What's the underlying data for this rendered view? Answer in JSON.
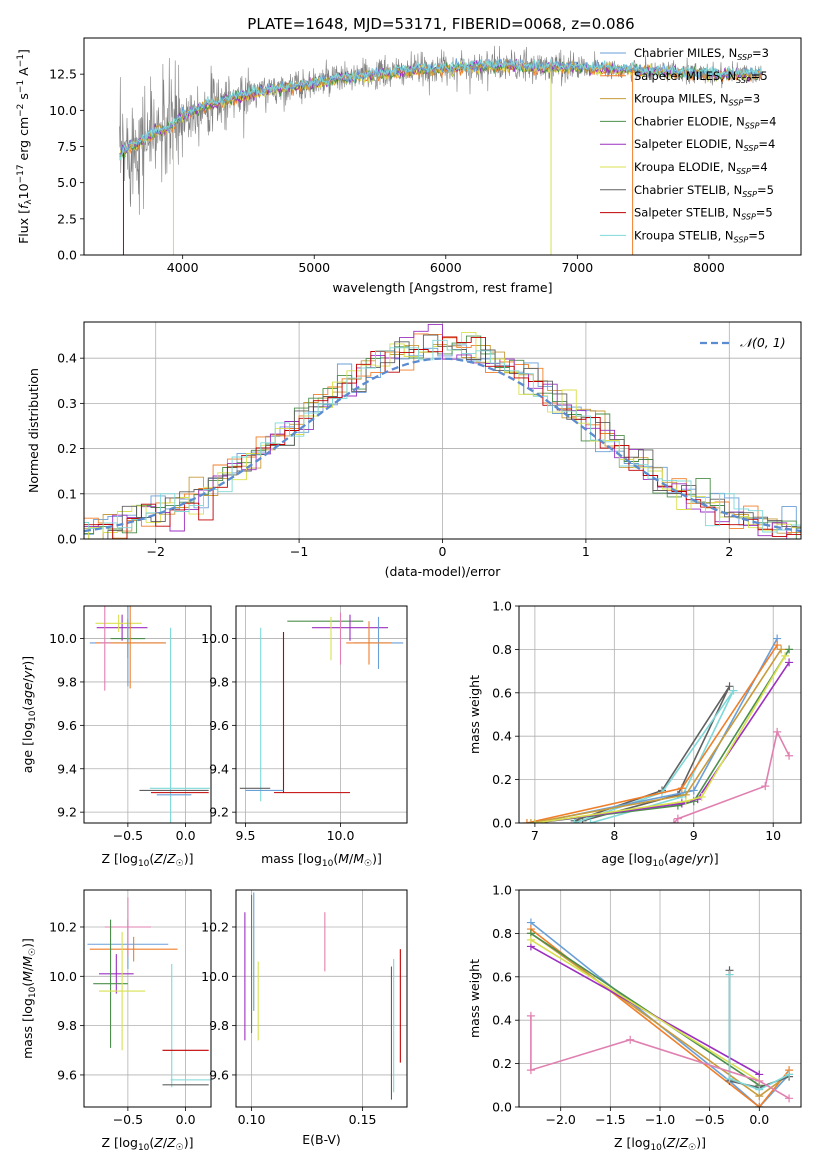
{
  "figure_title": "PLATE=1648, MJD=53171, FIBERID=0068, z=0.086",
  "colors": {
    "chabrier_miles": "#6a9fd8",
    "salpeter_miles": "#f07f2a",
    "kroupa_miles": "#c89b3c",
    "chabrier_elodie": "#4c8f4c",
    "salpeter_elodie": "#9b30c0",
    "kroupa_elodie": "#d8e050",
    "chabrier_stelib": "#606060",
    "salpeter_stelib": "#c00000",
    "kroupa_stelib": "#7fd8d8",
    "data": "#808080",
    "extra_pink": "#e080b0",
    "grid": "#b0b0b0",
    "normal_curve": "#5b8bd0"
  },
  "chart_data": [
    {
      "id": "spectrum",
      "type": "line",
      "title": "PLATE=1648, MJD=53171, FIBERID=0068, z=0.086",
      "xlabel": "wavelength [Angstrom, rest frame]",
      "ylabel": "Flux [f_λ 10^-17 erg cm^-2 s^-1 A^-1]",
      "xlim": [
        3250,
        8700
      ],
      "ylim": [
        0,
        15
      ],
      "xticks": [
        4000,
        5000,
        6000,
        7000,
        8000
      ],
      "yticks": [
        0.0,
        2.5,
        5.0,
        7.5,
        10.0,
        12.5
      ],
      "ytick_labels": [
        "0.0",
        "2.5",
        "5.0",
        "7.5",
        "10.0",
        "12.5"
      ],
      "legend_position": "right",
      "legend": [
        {
          "label": "Chabrier MILES, N",
          "sub": "SSP",
          "tail": "=3",
          "color_key": "chabrier_miles"
        },
        {
          "label": "Salpeter MILES, N",
          "sub": "SSP",
          "tail": "=5",
          "color_key": "salpeter_miles"
        },
        {
          "label": "Kroupa MILES, N",
          "sub": "SSP",
          "tail": "=3",
          "color_key": "kroupa_miles"
        },
        {
          "label": "Chabrier ELODIE, N",
          "sub": "SSP",
          "tail": "=4",
          "color_key": "chabrier_elodie"
        },
        {
          "label": "Salpeter ELODIE, N",
          "sub": "SSP",
          "tail": "=4",
          "color_key": "salpeter_elodie"
        },
        {
          "label": "Kroupa ELODIE, N",
          "sub": "SSP",
          "tail": "=4",
          "color_key": "kroupa_elodie"
        },
        {
          "label": "Chabrier STELIB, N",
          "sub": "SSP",
          "tail": "=5",
          "color_key": "chabrier_stelib"
        },
        {
          "label": "Salpeter STELIB, N",
          "sub": "SSP",
          "tail": "=5",
          "color_key": "salpeter_stelib"
        },
        {
          "label": "Kroupa STELIB, N",
          "sub": "SSP",
          "tail": "=5",
          "color_key": "kroupa_stelib"
        }
      ],
      "model_x": [
        3520,
        3600,
        3700,
        3800,
        3900,
        4000,
        4100,
        4200,
        4300,
        4400,
        4500,
        4600,
        4700,
        4800,
        4900,
        5000,
        5200,
        5400,
        5600,
        5800,
        6000,
        6200,
        6400,
        6600,
        6800,
        7000,
        7200,
        7400,
        7600,
        7800,
        8000,
        8200,
        8400
      ],
      "model_y": [
        6.8,
        7.5,
        8.0,
        8.5,
        8.8,
        9.6,
        10.1,
        10.4,
        10.6,
        10.9,
        11.1,
        11.3,
        11.5,
        11.6,
        11.7,
        11.9,
        12.2,
        12.4,
        12.6,
        12.8,
        12.9,
        13.0,
        13.1,
        13.0,
        13.0,
        13.0,
        12.9,
        12.8,
        12.7,
        12.6,
        12.5,
        12.5,
        12.5
      ],
      "cutoff_lines": [
        {
          "x": 3550,
          "color_key": "salpeter_stelib"
        },
        {
          "x": 3930,
          "color_key": "kroupa_elodie"
        },
        {
          "x": 6800,
          "color_key": "kroupa_elodie"
        },
        {
          "x": 7420,
          "color_key": "salpeter_miles"
        }
      ]
    },
    {
      "id": "residuals",
      "type": "area",
      "xlabel": "(data-model)/error",
      "ylabel": "Normed distribution",
      "xlim": [
        -2.5,
        2.5
      ],
      "ylim": [
        0,
        0.48
      ],
      "xticks": [
        -2,
        -1,
        0,
        1,
        2
      ],
      "xtick_labels": [
        "−2",
        "−1",
        "0",
        "1",
        "2"
      ],
      "yticks": [
        0.0,
        0.1,
        0.2,
        0.3,
        0.4
      ],
      "ytick_labels": [
        "0.0",
        "0.1",
        "0.2",
        "0.3",
        "0.4"
      ],
      "legend_position": "top-right",
      "legend": [
        {
          "label": "𝒩(0, 1)",
          "color_key": "normal_curve"
        }
      ],
      "bin_width": 0.1
    },
    {
      "id": "age_vs_Z",
      "type": "scatter",
      "xlabel": "Z [log10(Z/Z☉)]",
      "ylabel": "age [log10(age/yr)]",
      "xlim": [
        -0.88,
        0.22
      ],
      "ylim": [
        9.15,
        10.15
      ],
      "xticks": [
        -0.5,
        0.0
      ],
      "xtick_labels": [
        "−0.5",
        "0.0"
      ],
      "yticks": [
        9.2,
        9.4,
        9.6,
        9.8,
        10.0
      ],
      "ytick_labels": [
        "9.2",
        "9.4",
        "9.6",
        "9.8",
        "10.0"
      ],
      "points": [
        {
          "x": -0.5,
          "y": 10.0,
          "xerr": 0.15,
          "yerr": 0.09,
          "color_key": "chabrier_elodie"
        },
        {
          "x": -0.55,
          "y": 10.05,
          "xerr": 0.22,
          "yerr": 0.06,
          "color_key": "salpeter_elodie"
        },
        {
          "x": -0.58,
          "y": 10.07,
          "xerr": 0.2,
          "yerr": 0.04,
          "color_key": "kroupa_elodie"
        },
        {
          "x": -0.5,
          "y": 9.98,
          "xerr": 0.33,
          "yerr": 0.2,
          "color_key": "chabrier_miles"
        },
        {
          "x": -0.48,
          "y": 9.98,
          "xerr": 0.3,
          "yerr": 0.21,
          "color_key": "salpeter_miles"
        },
        {
          "x": -0.7,
          "y": 9.98,
          "xerr": 0.05,
          "yerr": 0.22,
          "color_key": "extra_pink"
        },
        {
          "x": -0.13,
          "y": 9.5,
          "xerr": 0.0,
          "yerr": 0.55,
          "color_key": "kroupa_stelib"
        },
        {
          "x": -0.1,
          "y": 9.3,
          "xerr": 0.3,
          "yerr": 0.0,
          "color_key": "chabrier_stelib"
        },
        {
          "x": -0.05,
          "y": 9.29,
          "xerr": 0.25,
          "yerr": 0.0,
          "color_key": "salpeter_stelib"
        },
        {
          "x": -0.05,
          "y": 9.31,
          "xerr": 0.26,
          "yerr": 0.0,
          "color_key": "kroupa_stelib"
        },
        {
          "x": -0.1,
          "y": 9.28,
          "xerr": 0.15,
          "yerr": 0.0,
          "color_key": "chabrier_miles"
        }
      ]
    },
    {
      "id": "age_vs_mass",
      "type": "scatter",
      "xlabel": "mass [log10(M/M☉)]",
      "ylabel": "",
      "xlim": [
        9.45,
        10.35
      ],
      "ylim": [
        9.15,
        10.15
      ],
      "xticks": [
        9.5,
        10.0
      ],
      "xtick_labels": [
        "9.5",
        "10.0"
      ],
      "yticks": [
        9.2,
        9.4,
        9.6,
        9.8,
        10.0
      ],
      "ytick_labels": [
        "9.2",
        "9.4",
        "9.6",
        "9.8",
        "10.0"
      ],
      "points": [
        {
          "x": 9.92,
          "y": 10.08,
          "xerr": 0.2,
          "yerr": 0.0,
          "color_key": "chabrier_elodie"
        },
        {
          "x": 10.05,
          "y": 10.05,
          "xerr": 0.2,
          "yerr": 0.06,
          "color_key": "salpeter_elodie"
        },
        {
          "x": 9.95,
          "y": 10.0,
          "xerr": 0.0,
          "yerr": 0.1,
          "color_key": "kroupa_elodie"
        },
        {
          "x": 10.2,
          "y": 9.98,
          "xerr": 0.13,
          "yerr": 0.12,
          "color_key": "chabrier_miles"
        },
        {
          "x": 10.15,
          "y": 9.98,
          "xerr": 0.12,
          "yerr": 0.1,
          "color_key": "salpeter_miles"
        },
        {
          "x": 10.0,
          "y": 10.0,
          "xerr": 0.0,
          "yerr": 0.12,
          "color_key": "extra_pink"
        },
        {
          "x": 9.58,
          "y": 9.65,
          "xerr": 0.0,
          "yerr": 0.4,
          "color_key": "kroupa_stelib"
        },
        {
          "x": 9.55,
          "y": 9.31,
          "xerr": 0.08,
          "yerr": 0.0,
          "color_key": "chabrier_stelib"
        },
        {
          "x": 9.7,
          "y": 9.66,
          "xerr": 0.0,
          "yerr": 0.37,
          "color_key": "salpeter_stelib"
        },
        {
          "x": 9.85,
          "y": 9.29,
          "xerr": 0.2,
          "yerr": 0.0,
          "color_key": "salpeter_stelib"
        },
        {
          "x": 9.6,
          "y": 9.3,
          "xerr": 0.1,
          "yerr": 0.0,
          "color_key": "chabrier_miles"
        }
      ]
    },
    {
      "id": "weight_vs_age",
      "type": "line",
      "xlabel": "age [log10(age/yr)]",
      "ylabel": "mass weight",
      "xlim": [
        6.8,
        10.35
      ],
      "ylim": [
        0,
        1.0
      ],
      "xticks": [
        7,
        8,
        9,
        10
      ],
      "xtick_labels": [
        "7",
        "8",
        "9",
        "10"
      ],
      "yticks": [
        0.0,
        0.2,
        0.4,
        0.6,
        0.8,
        1.0
      ],
      "ytick_labels": [
        "0.0",
        "0.2",
        "0.4",
        "0.6",
        "0.8",
        "1.0"
      ],
      "series": [
        {
          "color_key": "chabrier_stelib",
          "x": [
            7.5,
            8.6,
            9.45,
            8.8,
            7.6
          ],
          "y": [
            0.01,
            0.15,
            0.63,
            0.13,
            0.01
          ]
        },
        {
          "color_key": "kroupa_stelib",
          "x": [
            7.5,
            8.6,
            9.5,
            8.85,
            7.7
          ],
          "y": [
            0.0,
            0.14,
            0.61,
            0.12,
            0.0
          ]
        },
        {
          "color_key": "chabrier_miles",
          "x": [
            7.0,
            9.0,
            10.05
          ],
          "y": [
            0.0,
            0.15,
            0.85
          ]
        },
        {
          "color_key": "salpeter_miles",
          "x": [
            6.9,
            8.85,
            10.05
          ],
          "y": [
            0.0,
            0.16,
            0.82
          ]
        },
        {
          "color_key": "kroupa_miles",
          "x": [
            6.95,
            8.9,
            10.1
          ],
          "y": [
            0.0,
            0.13,
            0.8
          ]
        },
        {
          "color_key": "chabrier_elodie",
          "x": [
            7.0,
            8.8,
            9.0,
            10.2
          ],
          "y": [
            0.0,
            0.08,
            0.1,
            0.8
          ]
        },
        {
          "color_key": "salpeter_elodie",
          "x": [
            7.0,
            8.85,
            9.05,
            10.2
          ],
          "y": [
            0.0,
            0.09,
            0.11,
            0.74
          ]
        },
        {
          "color_key": "kroupa_elodie",
          "x": [
            7.0,
            8.9,
            9.1,
            10.15
          ],
          "y": [
            0.0,
            0.1,
            0.12,
            0.77
          ]
        },
        {
          "color_key": "extra_pink",
          "x": [
            8.75,
            8.8,
            9.9,
            10.05,
            10.2
          ],
          "y": [
            0.0,
            0.02,
            0.17,
            0.42,
            0.31
          ]
        }
      ]
    },
    {
      "id": "mass_vs_Z",
      "type": "scatter",
      "xlabel": "Z [log10(Z/Z☉)]",
      "ylabel": "mass [log10(M/M☉)]",
      "xlim": [
        -0.88,
        0.22
      ],
      "ylim": [
        9.47,
        10.35
      ],
      "xticks": [
        -0.5,
        0.0
      ],
      "xtick_labels": [
        "−0.5",
        "0.0"
      ],
      "yticks": [
        9.6,
        9.8,
        10.0,
        10.2
      ],
      "ytick_labels": [
        "9.6",
        "9.8",
        "10.0",
        "10.2"
      ],
      "points": [
        {
          "x": -0.5,
          "y": 10.13,
          "xerr": 0.35,
          "yerr": 0.1,
          "color_key": "chabrier_miles"
        },
        {
          "x": -0.5,
          "y": 10.2,
          "xerr": 0.2,
          "yerr": 0.12,
          "color_key": "extra_pink"
        },
        {
          "x": -0.45,
          "y": 10.11,
          "xerr": 0.38,
          "yerr": 0.05,
          "color_key": "salpeter_miles"
        },
        {
          "x": -0.6,
          "y": 10.01,
          "xerr": 0.15,
          "yerr": 0.08,
          "color_key": "salpeter_elodie"
        },
        {
          "x": -0.65,
          "y": 9.97,
          "xerr": 0.15,
          "yerr": 0.26,
          "color_key": "chabrier_elodie"
        },
        {
          "x": -0.55,
          "y": 9.94,
          "xerr": 0.2,
          "yerr": 0.24,
          "color_key": "kroupa_elodie"
        },
        {
          "x": -0.12,
          "y": 9.8,
          "xerr": 0.0,
          "yerr": 0.25,
          "color_key": "kroupa_stelib"
        },
        {
          "x": 0.0,
          "y": 9.7,
          "xerr": 0.2,
          "yerr": 0.0,
          "color_key": "salpeter_stelib"
        },
        {
          "x": 0.05,
          "y": 9.58,
          "xerr": 0.18,
          "yerr": 0.0,
          "color_key": "kroupa_stelib"
        },
        {
          "x": 0.0,
          "y": 9.56,
          "xerr": 0.2,
          "yerr": 0.0,
          "color_key": "chabrier_stelib"
        }
      ]
    },
    {
      "id": "mass_vs_EBV",
      "type": "scatter",
      "xlabel": "E(B-V)",
      "ylabel": "",
      "xlim": [
        0.093,
        0.17
      ],
      "ylim": [
        9.47,
        10.35
      ],
      "xticks": [
        0.1,
        0.15
      ],
      "xtick_labels": [
        "0.10",
        "0.15"
      ],
      "yticks": [
        9.6,
        9.8,
        10.0,
        10.2
      ],
      "ytick_labels": [
        "9.6",
        "9.8",
        "10.0",
        "10.2"
      ],
      "points": [
        {
          "x": 0.097,
          "y": 10.0,
          "xerr": 0.0,
          "yerr": 0.26,
          "color_key": "salpeter_elodie"
        },
        {
          "x": 0.1,
          "y": 10.05,
          "xerr": 0.0,
          "yerr": 0.28,
          "color_key": "chabrier_elodie"
        },
        {
          "x": 0.101,
          "y": 10.1,
          "xerr": 0.0,
          "yerr": 0.24,
          "color_key": "chabrier_miles"
        },
        {
          "x": 0.103,
          "y": 9.9,
          "xerr": 0.0,
          "yerr": 0.16,
          "color_key": "kroupa_elodie"
        },
        {
          "x": 0.133,
          "y": 10.14,
          "xerr": 0.0,
          "yerr": 0.12,
          "color_key": "extra_pink"
        },
        {
          "x": 0.163,
          "y": 9.77,
          "xerr": 0.0,
          "yerr": 0.27,
          "color_key": "chabrier_stelib"
        },
        {
          "x": 0.164,
          "y": 9.8,
          "xerr": 0.0,
          "yerr": 0.27,
          "color_key": "kroupa_stelib"
        },
        {
          "x": 0.167,
          "y": 9.88,
          "xerr": 0.0,
          "yerr": 0.23,
          "color_key": "salpeter_stelib"
        }
      ]
    },
    {
      "id": "weight_vs_Z",
      "type": "line",
      "xlabel": "Z [log10(Z/Z☉)]",
      "ylabel": "mass weight",
      "xlim": [
        -2.42,
        0.42
      ],
      "ylim": [
        0,
        1.0
      ],
      "xticks": [
        -2.0,
        -1.5,
        -1.0,
        -0.5,
        0.0
      ],
      "xtick_labels": [
        "−2.0",
        "−1.5",
        "−1.0",
        "−0.5",
        "0.0"
      ],
      "yticks": [
        0.0,
        0.2,
        0.4,
        0.6,
        0.8,
        1.0
      ],
      "ytick_labels": [
        "0.0",
        "0.2",
        "0.4",
        "0.6",
        "0.8",
        "1.0"
      ],
      "series": [
        {
          "color_key": "chabrier_miles",
          "x": [
            -2.3,
            -0.3,
            0.0,
            0.3
          ],
          "y": [
            0.85,
            0.12,
            0.0,
            0.15
          ]
        },
        {
          "color_key": "salpeter_miles",
          "x": [
            -2.3,
            0.0,
            0.3
          ],
          "y": [
            0.82,
            0.0,
            0.17
          ]
        },
        {
          "color_key": "kroupa_miles",
          "x": [
            -2.3,
            0.0,
            0.3
          ],
          "y": [
            0.8,
            0.05,
            0.15
          ]
        },
        {
          "color_key": "chabrier_elodie",
          "x": [
            -2.3,
            0.0
          ],
          "y": [
            0.8,
            0.1
          ]
        },
        {
          "color_key": "salpeter_elodie",
          "x": [
            -2.3,
            0.0
          ],
          "y": [
            0.74,
            0.15
          ]
        },
        {
          "color_key": "kroupa_elodie",
          "x": [
            -2.3,
            0.0
          ],
          "y": [
            0.77,
            0.12
          ]
        },
        {
          "color_key": "chabrier_stelib",
          "x": [
            -0.3,
            -0.3,
            0.0,
            0.3
          ],
          "y": [
            0.63,
            0.12,
            0.09,
            0.14
          ]
        },
        {
          "color_key": "kroupa_stelib",
          "x": [
            -0.3,
            -0.3,
            0.0,
            0.3
          ],
          "y": [
            0.61,
            0.13,
            0.08,
            0.15
          ]
        },
        {
          "color_key": "extra_pink",
          "x": [
            -2.3,
            -2.3,
            -1.3,
            0.0,
            0.3
          ],
          "y": [
            0.42,
            0.17,
            0.31,
            0.12,
            0.04
          ]
        }
      ]
    }
  ]
}
